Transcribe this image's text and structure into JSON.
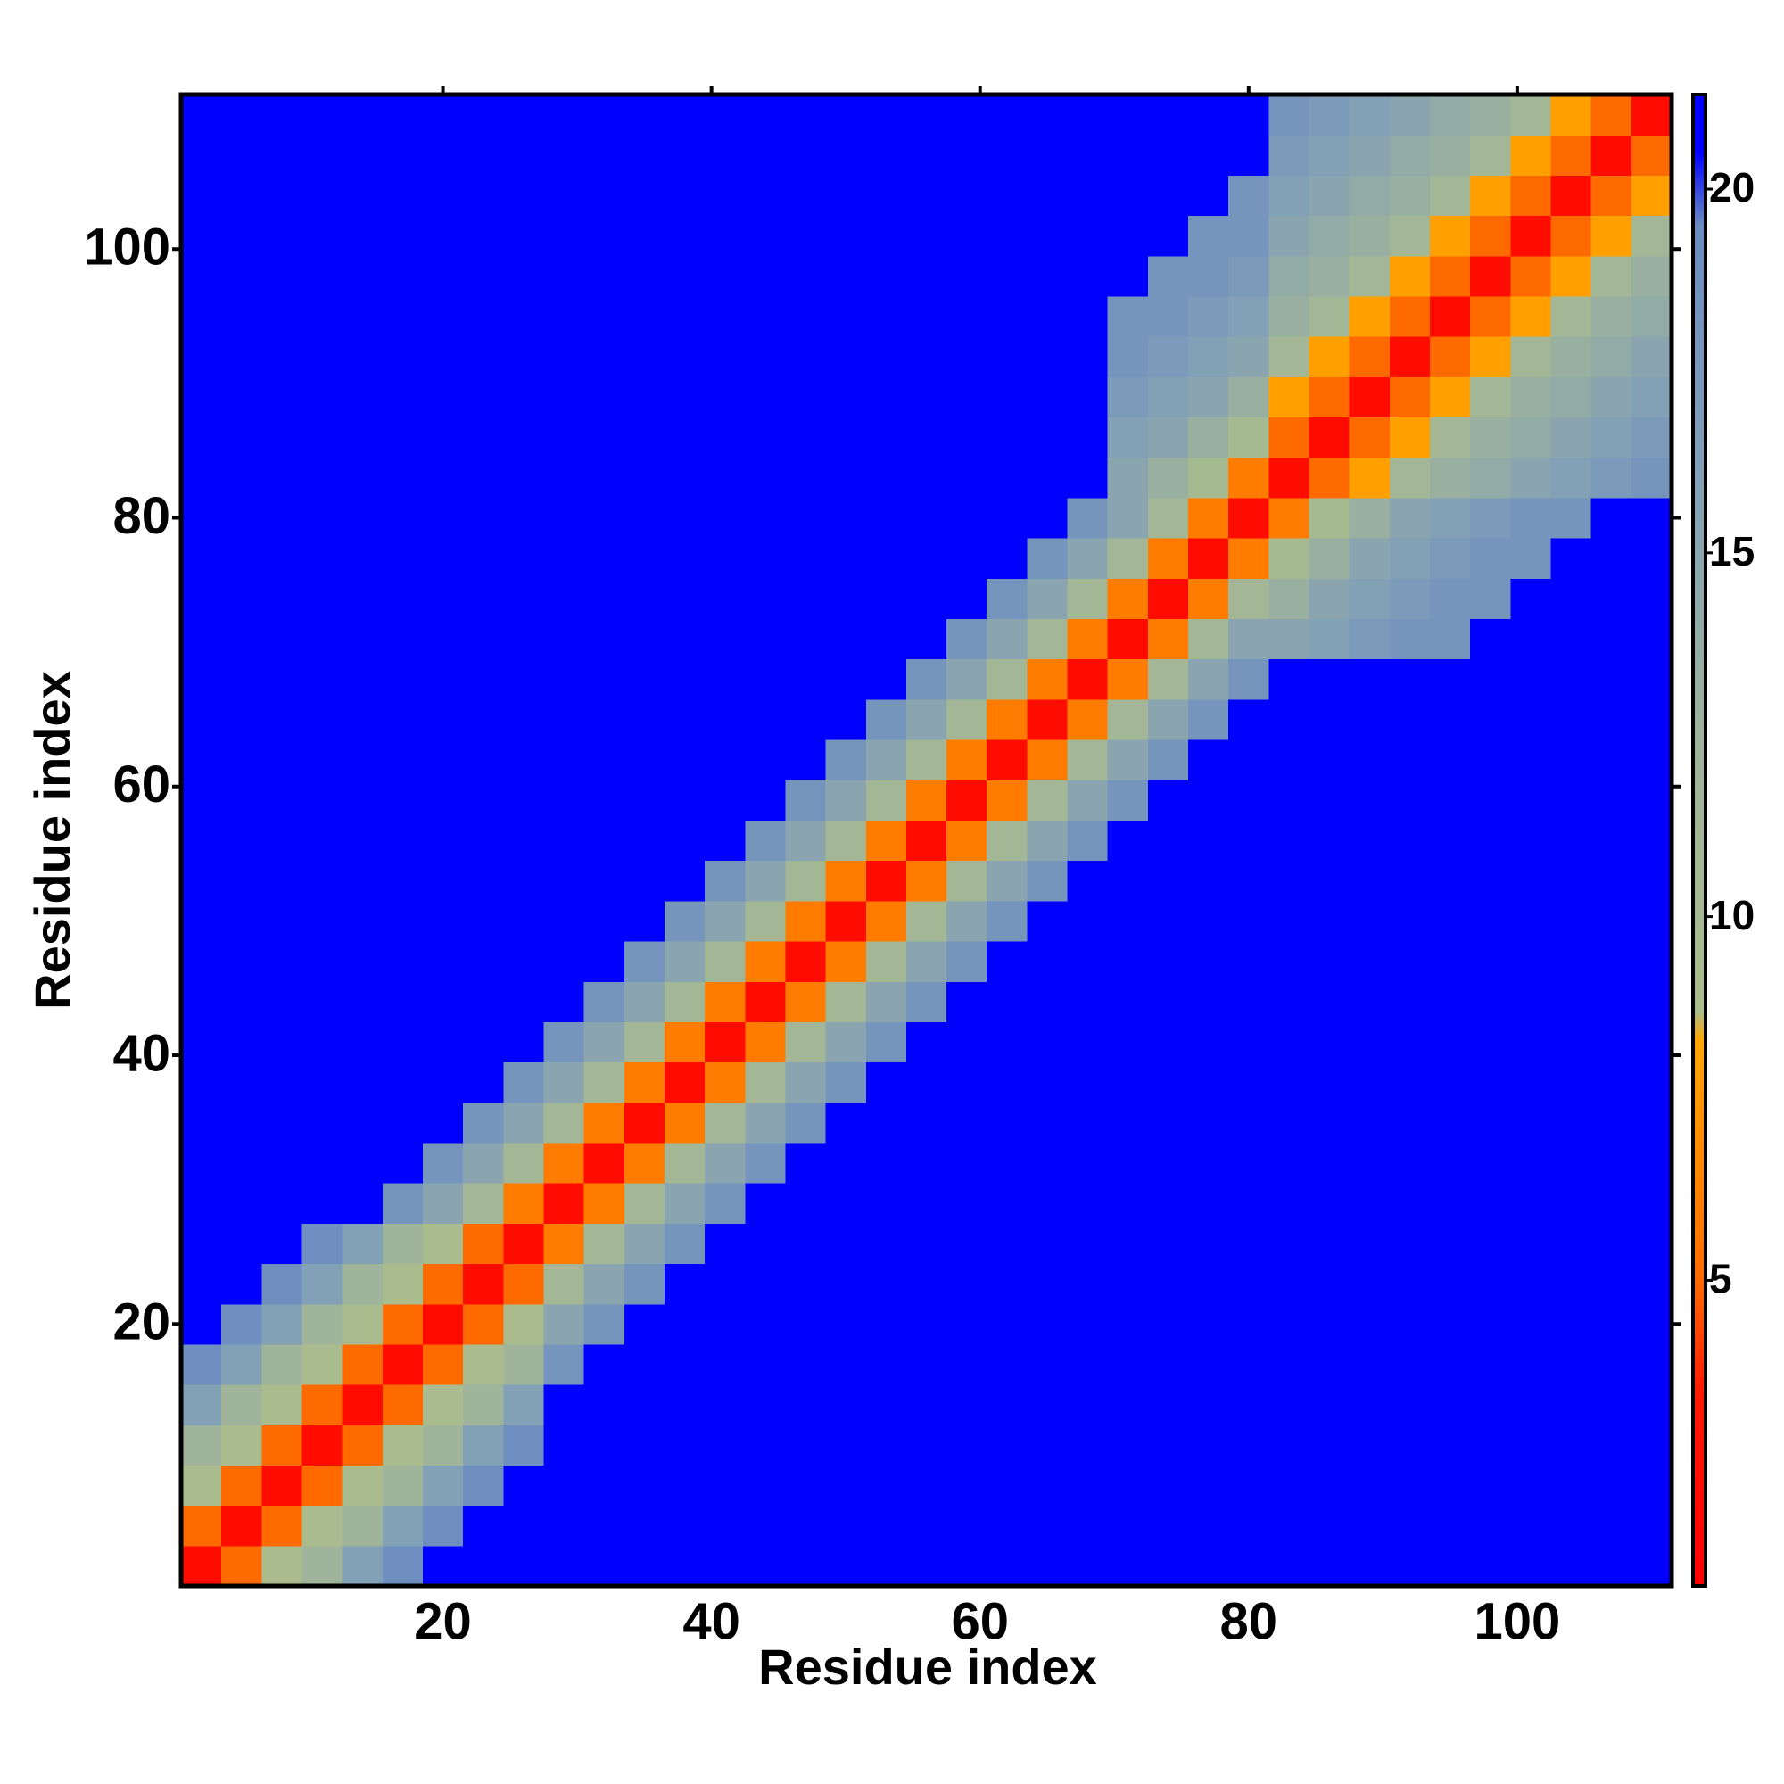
{
  "chart_data": {
    "type": "heatmap",
    "x_label": "Residue index",
    "y_label": "Residue index",
    "x": [
      2,
      5,
      8,
      11,
      14,
      17,
      20,
      23,
      26,
      29,
      32,
      35,
      38,
      41,
      44,
      47,
      50,
      53,
      56,
      59,
      62,
      65,
      68,
      71,
      74,
      77,
      80,
      83,
      86,
      89,
      92,
      95,
      98,
      101,
      104,
      107,
      110
    ],
    "y": [
      2,
      5,
      8,
      11,
      14,
      17,
      20,
      23,
      26,
      29,
      32,
      35,
      38,
      41,
      44,
      47,
      50,
      53,
      56,
      59,
      62,
      65,
      68,
      71,
      74,
      77,
      80,
      83,
      86,
      89,
      92,
      95,
      98,
      101,
      104,
      107,
      110
    ],
    "z": [
      [
        2,
        5,
        9,
        12,
        16,
        19,
        21,
        21,
        21,
        21,
        21,
        21,
        21,
        21,
        21,
        21,
        21,
        21,
        21,
        21,
        21,
        21,
        21,
        21,
        21,
        21,
        21,
        21,
        21,
        21,
        21,
        21,
        21,
        21,
        21,
        21,
        21
      ],
      [
        5,
        2,
        5,
        9,
        12,
        16,
        19,
        21,
        21,
        21,
        21,
        21,
        21,
        21,
        21,
        21,
        21,
        21,
        21,
        21,
        21,
        21,
        21,
        21,
        21,
        21,
        21,
        21,
        21,
        21,
        21,
        21,
        21,
        21,
        21,
        21,
        21
      ],
      [
        9,
        5,
        2,
        5,
        9,
        12,
        16,
        19,
        21,
        21,
        21,
        21,
        21,
        21,
        21,
        21,
        21,
        21,
        21,
        21,
        21,
        21,
        21,
        21,
        21,
        21,
        21,
        21,
        21,
        21,
        21,
        21,
        21,
        21,
        21,
        21,
        21
      ],
      [
        12,
        9,
        5,
        2,
        5,
        9,
        12,
        16,
        19,
        21,
        21,
        21,
        21,
        21,
        21,
        21,
        21,
        21,
        21,
        21,
        21,
        21,
        21,
        21,
        21,
        21,
        21,
        21,
        21,
        21,
        21,
        21,
        21,
        21,
        21,
        21,
        21
      ],
      [
        16,
        12,
        9,
        5,
        2,
        5,
        9,
        12,
        16,
        21,
        21,
        21,
        21,
        21,
        21,
        21,
        21,
        21,
        21,
        21,
        21,
        21,
        21,
        21,
        21,
        21,
        21,
        21,
        21,
        21,
        21,
        21,
        21,
        21,
        21,
        21,
        21
      ],
      [
        19,
        16,
        12,
        9,
        5,
        2,
        5,
        9,
        12,
        18,
        21,
        21,
        21,
        21,
        21,
        21,
        21,
        21,
        21,
        21,
        21,
        21,
        21,
        21,
        21,
        21,
        21,
        21,
        21,
        21,
        21,
        21,
        21,
        21,
        21,
        21,
        21
      ],
      [
        21,
        19,
        16,
        12,
        9,
        5,
        2,
        5,
        9,
        15,
        18,
        21,
        21,
        21,
        21,
        21,
        21,
        21,
        21,
        21,
        21,
        21,
        21,
        21,
        21,
        21,
        21,
        21,
        21,
        21,
        21,
        21,
        21,
        21,
        21,
        21,
        21
      ],
      [
        21,
        21,
        19,
        16,
        12,
        9,
        5,
        2,
        5,
        11,
        15,
        18,
        21,
        21,
        21,
        21,
        21,
        21,
        21,
        21,
        21,
        21,
        21,
        21,
        21,
        21,
        21,
        21,
        21,
        21,
        21,
        21,
        21,
        21,
        21,
        21,
        21
      ],
      [
        21,
        21,
        21,
        19,
        16,
        12,
        9,
        5,
        2,
        6,
        11,
        15,
        18,
        21,
        21,
        21,
        21,
        21,
        21,
        21,
        21,
        21,
        21,
        21,
        21,
        21,
        21,
        21,
        21,
        21,
        21,
        21,
        21,
        21,
        21,
        21,
        21
      ],
      [
        21,
        21,
        21,
        21,
        21,
        18,
        15,
        11,
        6,
        2,
        6,
        11,
        15,
        18,
        21,
        21,
        21,
        21,
        21,
        21,
        21,
        21,
        21,
        21,
        21,
        21,
        21,
        21,
        21,
        21,
        21,
        21,
        21,
        21,
        21,
        21,
        21
      ],
      [
        21,
        21,
        21,
        21,
        21,
        21,
        18,
        15,
        11,
        6,
        2,
        6,
        11,
        15,
        18,
        21,
        21,
        21,
        21,
        21,
        21,
        21,
        21,
        21,
        21,
        21,
        21,
        21,
        21,
        21,
        21,
        21,
        21,
        21,
        21,
        21,
        21
      ],
      [
        21,
        21,
        21,
        21,
        21,
        21,
        21,
        18,
        15,
        11,
        6,
        2,
        6,
        11,
        15,
        18,
        21,
        21,
        21,
        21,
        21,
        21,
        21,
        21,
        21,
        21,
        21,
        21,
        21,
        21,
        21,
        21,
        21,
        21,
        21,
        21,
        21
      ],
      [
        21,
        21,
        21,
        21,
        21,
        21,
        21,
        21,
        18,
        15,
        11,
        6,
        2,
        6,
        11,
        15,
        18,
        21,
        21,
        21,
        21,
        21,
        21,
        21,
        21,
        21,
        21,
        21,
        21,
        21,
        21,
        21,
        21,
        21,
        21,
        21,
        21
      ],
      [
        21,
        21,
        21,
        21,
        21,
        21,
        21,
        21,
        21,
        18,
        15,
        11,
        6,
        2,
        6,
        11,
        15,
        18,
        21,
        21,
        21,
        21,
        21,
        21,
        21,
        21,
        21,
        21,
        21,
        21,
        21,
        21,
        21,
        21,
        21,
        21,
        21
      ],
      [
        21,
        21,
        21,
        21,
        21,
        21,
        21,
        21,
        21,
        21,
        18,
        15,
        11,
        6,
        2,
        6,
        11,
        15,
        18,
        21,
        21,
        21,
        21,
        21,
        21,
        21,
        21,
        21,
        21,
        21,
        21,
        21,
        21,
        21,
        21,
        21,
        21
      ],
      [
        21,
        21,
        21,
        21,
        21,
        21,
        21,
        21,
        21,
        21,
        21,
        18,
        15,
        11,
        6,
        2,
        6,
        11,
        15,
        18,
        21,
        21,
        21,
        21,
        21,
        21,
        21,
        21,
        21,
        21,
        21,
        21,
        21,
        21,
        21,
        21,
        21
      ],
      [
        21,
        21,
        21,
        21,
        21,
        21,
        21,
        21,
        21,
        21,
        21,
        21,
        18,
        15,
        11,
        6,
        2,
        6,
        11,
        15,
        18,
        21,
        21,
        21,
        21,
        21,
        21,
        21,
        21,
        21,
        21,
        21,
        21,
        21,
        21,
        21,
        21
      ],
      [
        21,
        21,
        21,
        21,
        21,
        21,
        21,
        21,
        21,
        21,
        21,
        21,
        21,
        18,
        15,
        11,
        6,
        2,
        6,
        11,
        15,
        18,
        21,
        21,
        21,
        21,
        21,
        21,
        21,
        21,
        21,
        21,
        21,
        21,
        21,
        21,
        21
      ],
      [
        21,
        21,
        21,
        21,
        21,
        21,
        21,
        21,
        21,
        21,
        21,
        21,
        21,
        21,
        18,
        15,
        11,
        6,
        2,
        6,
        11,
        15,
        18,
        21,
        21,
        21,
        21,
        21,
        21,
        21,
        21,
        21,
        21,
        21,
        21,
        21,
        21
      ],
      [
        21,
        21,
        21,
        21,
        21,
        21,
        21,
        21,
        21,
        21,
        21,
        21,
        21,
        21,
        21,
        18,
        15,
        11,
        6,
        2,
        6,
        11,
        15,
        18,
        21,
        21,
        21,
        21,
        21,
        21,
        21,
        21,
        21,
        21,
        21,
        21,
        21
      ],
      [
        21,
        21,
        21,
        21,
        21,
        21,
        21,
        21,
        21,
        21,
        21,
        21,
        21,
        21,
        21,
        21,
        18,
        15,
        11,
        6,
        2,
        6,
        11,
        15,
        18,
        21,
        21,
        21,
        21,
        21,
        21,
        21,
        21,
        21,
        21,
        21,
        21
      ],
      [
        21,
        21,
        21,
        21,
        21,
        21,
        21,
        21,
        21,
        21,
        21,
        21,
        21,
        21,
        21,
        21,
        21,
        18,
        15,
        11,
        6,
        2,
        6,
        11,
        15,
        18,
        21,
        21,
        21,
        21,
        21,
        21,
        21,
        21,
        21,
        21,
        21
      ],
      [
        21,
        21,
        21,
        21,
        21,
        21,
        21,
        21,
        21,
        21,
        21,
        21,
        21,
        21,
        21,
        21,
        21,
        21,
        18,
        15,
        11,
        6,
        2,
        6,
        11,
        15,
        18,
        21,
        21,
        21,
        21,
        21,
        21,
        21,
        21,
        21,
        21
      ],
      [
        21,
        21,
        21,
        21,
        21,
        21,
        21,
        21,
        21,
        21,
        21,
        21,
        21,
        21,
        21,
        21,
        21,
        21,
        21,
        18,
        15,
        11,
        6,
        2,
        6,
        11,
        15,
        15,
        16,
        17,
        18,
        18,
        21,
        21,
        21,
        21,
        21
      ],
      [
        21,
        21,
        21,
        21,
        21,
        21,
        21,
        21,
        21,
        21,
        21,
        21,
        21,
        21,
        21,
        21,
        21,
        21,
        21,
        21,
        18,
        15,
        11,
        6,
        2,
        6,
        11,
        13,
        15,
        16,
        17,
        18,
        18,
        21,
        21,
        21,
        21
      ],
      [
        21,
        21,
        21,
        21,
        21,
        21,
        21,
        21,
        21,
        21,
        21,
        21,
        21,
        21,
        21,
        21,
        21,
        21,
        21,
        21,
        21,
        18,
        15,
        11,
        6,
        2,
        6,
        10,
        13,
        15,
        16,
        17,
        18,
        18,
        21,
        21,
        21
      ],
      [
        21,
        21,
        21,
        21,
        21,
        21,
        21,
        21,
        21,
        21,
        21,
        21,
        21,
        21,
        21,
        21,
        21,
        21,
        21,
        21,
        21,
        21,
        18,
        15,
        11,
        6,
        2,
        6,
        10,
        13,
        15,
        16,
        17,
        18,
        18,
        21,
        21
      ],
      [
        21,
        21,
        21,
        21,
        21,
        21,
        21,
        21,
        21,
        21,
        21,
        21,
        21,
        21,
        21,
        21,
        21,
        21,
        21,
        21,
        21,
        21,
        21,
        15,
        13,
        10,
        6,
        2,
        5,
        8,
        11,
        13,
        14,
        15,
        16,
        17,
        18
      ],
      [
        21,
        21,
        21,
        21,
        21,
        21,
        21,
        21,
        21,
        21,
        21,
        21,
        21,
        21,
        21,
        21,
        21,
        21,
        21,
        21,
        21,
        21,
        21,
        16,
        15,
        13,
        10,
        5,
        2,
        5,
        8,
        11,
        13,
        14,
        15,
        16,
        17
      ],
      [
        21,
        21,
        21,
        21,
        21,
        21,
        21,
        21,
        21,
        21,
        21,
        21,
        21,
        21,
        21,
        21,
        21,
        21,
        21,
        21,
        21,
        21,
        21,
        17,
        16,
        15,
        13,
        8,
        5,
        2,
        5,
        8,
        11,
        13,
        14,
        15,
        16
      ],
      [
        21,
        21,
        21,
        21,
        21,
        21,
        21,
        21,
        21,
        21,
        21,
        21,
        21,
        21,
        21,
        21,
        21,
        21,
        21,
        21,
        21,
        21,
        21,
        18,
        17,
        16,
        15,
        11,
        8,
        5,
        2,
        5,
        8,
        11,
        13,
        14,
        15
      ],
      [
        21,
        21,
        21,
        21,
        21,
        21,
        21,
        21,
        21,
        21,
        21,
        21,
        21,
        21,
        21,
        21,
        21,
        21,
        21,
        21,
        21,
        21,
        21,
        18,
        18,
        17,
        16,
        13,
        11,
        8,
        5,
        2,
        5,
        8,
        11,
        13,
        14
      ],
      [
        21,
        21,
        21,
        21,
        21,
        21,
        21,
        21,
        21,
        21,
        21,
        21,
        21,
        21,
        21,
        21,
        21,
        21,
        21,
        21,
        21,
        21,
        21,
        21,
        18,
        18,
        17,
        14,
        13,
        11,
        8,
        5,
        2,
        5,
        8,
        11,
        13
      ],
      [
        21,
        21,
        21,
        21,
        21,
        21,
        21,
        21,
        21,
        21,
        21,
        21,
        21,
        21,
        21,
        21,
        21,
        21,
        21,
        21,
        21,
        21,
        21,
        21,
        21,
        18,
        18,
        15,
        14,
        13,
        11,
        8,
        5,
        2,
        5,
        8,
        11
      ],
      [
        21,
        21,
        21,
        21,
        21,
        21,
        21,
        21,
        21,
        21,
        21,
        21,
        21,
        21,
        21,
        21,
        21,
        21,
        21,
        21,
        21,
        21,
        21,
        21,
        21,
        21,
        18,
        16,
        15,
        14,
        13,
        11,
        8,
        5,
        2,
        5,
        8
      ],
      [
        21,
        21,
        21,
        21,
        21,
        21,
        21,
        21,
        21,
        21,
        21,
        21,
        21,
        21,
        21,
        21,
        21,
        21,
        21,
        21,
        21,
        21,
        21,
        21,
        21,
        21,
        21,
        17,
        16,
        15,
        14,
        13,
        11,
        8,
        5,
        2,
        5
      ],
      [
        21,
        21,
        21,
        21,
        21,
        21,
        21,
        21,
        21,
        21,
        21,
        21,
        21,
        21,
        21,
        21,
        21,
        21,
        21,
        21,
        21,
        21,
        21,
        21,
        21,
        21,
        21,
        18,
        17,
        16,
        15,
        14,
        13,
        11,
        8,
        5,
        2
      ]
    ],
    "xlim": [
      0.5,
      111.5
    ],
    "ylim": [
      0.5,
      111.5
    ],
    "xticks": [
      20,
      40,
      60,
      80,
      100
    ],
    "yticks": [
      20,
      40,
      60,
      80,
      100
    ],
    "clim": [
      0.8,
      21.3
    ],
    "cticks": [
      5,
      10,
      15,
      20
    ],
    "colorscale": [
      [
        0.8,
        "#ff0000"
      ],
      [
        3.5,
        "#ff1a00"
      ],
      [
        5,
        "#ff6a00"
      ],
      [
        8.3,
        "#ffa500"
      ],
      [
        8.7,
        "#abbd8c"
      ],
      [
        12.5,
        "#9db39c"
      ],
      [
        16,
        "#82a0b6"
      ],
      [
        19.5,
        "#6c8cc2"
      ],
      [
        20.5,
        "#0000ff"
      ],
      [
        21.3,
        "#0000ff"
      ]
    ]
  }
}
